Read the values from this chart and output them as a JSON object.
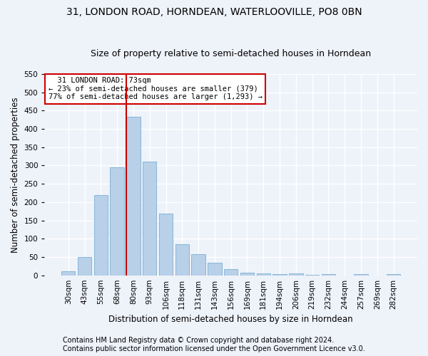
{
  "title": "31, LONDON ROAD, HORNDEAN, WATERLOOVILLE, PO8 0BN",
  "subtitle": "Size of property relative to semi-detached houses in Horndean",
  "xlabel": "Distribution of semi-detached houses by size in Horndean",
  "ylabel": "Number of semi-detached properties",
  "footer1": "Contains HM Land Registry data © Crown copyright and database right 2024.",
  "footer2": "Contains public sector information licensed under the Open Government Licence v3.0.",
  "bar_labels": [
    "30sqm",
    "43sqm",
    "55sqm",
    "68sqm",
    "80sqm",
    "93sqm",
    "106sqm",
    "118sqm",
    "131sqm",
    "143sqm",
    "156sqm",
    "169sqm",
    "181sqm",
    "194sqm",
    "206sqm",
    "219sqm",
    "232sqm",
    "244sqm",
    "257sqm",
    "269sqm",
    "282sqm"
  ],
  "bar_values": [
    12,
    49,
    220,
    295,
    433,
    311,
    168,
    85,
    58,
    34,
    16,
    8,
    5,
    3,
    5,
    1,
    3,
    0,
    3,
    0,
    3
  ],
  "bar_color": "#b8d0e8",
  "bar_edge_color": "#7aafd4",
  "annotation_box_text": "  31 LONDON ROAD: 73sqm\n← 23% of semi-detached houses are smaller (379)\n77% of semi-detached houses are larger (1,293) →",
  "vline_x_index": 4,
  "vline_color": "#cc0000",
  "ylim": [
    0,
    550
  ],
  "yticks": [
    0,
    50,
    100,
    150,
    200,
    250,
    300,
    350,
    400,
    450,
    500,
    550
  ],
  "background_color": "#eef2f9",
  "grid_color": "#ffffff",
  "annotation_box_color": "#ffffff",
  "annotation_box_edge_color": "#cc0000",
  "title_fontsize": 10,
  "subtitle_fontsize": 9,
  "label_fontsize": 8.5,
  "tick_fontsize": 7.5,
  "footer_fontsize": 7
}
